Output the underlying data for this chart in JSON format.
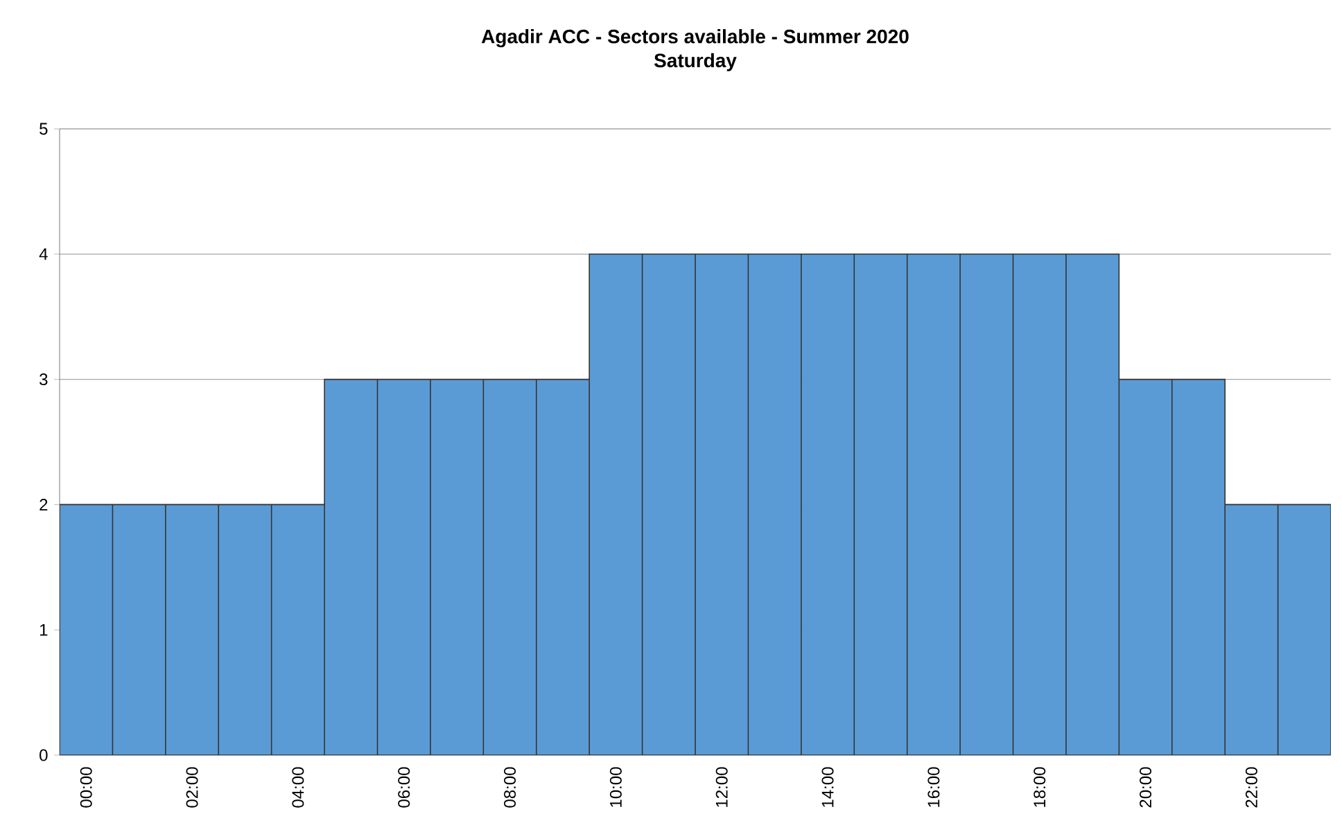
{
  "chart_data": {
    "type": "bar",
    "title": "Agadir ACC - Sectors available - Summer 2020",
    "subtitle": "Saturday",
    "categories": [
      "00:00",
      null,
      "02:00",
      null,
      "04:00",
      null,
      "06:00",
      null,
      "08:00",
      null,
      "10:00",
      null,
      "12:00",
      null,
      "14:00",
      null,
      "16:00",
      null,
      "18:00",
      null,
      "20:00",
      null,
      "22:00",
      null
    ],
    "values": [
      2,
      2,
      2,
      2,
      2,
      3,
      3,
      3,
      3,
      3,
      4,
      4,
      4,
      4,
      4,
      4,
      4,
      4,
      4,
      4,
      3,
      3,
      2,
      2
    ],
    "color": "#5b9bd5",
    "ylim": [
      0,
      5
    ],
    "yticks": [
      0,
      1,
      2,
      3,
      4,
      5
    ],
    "grid": "y"
  }
}
